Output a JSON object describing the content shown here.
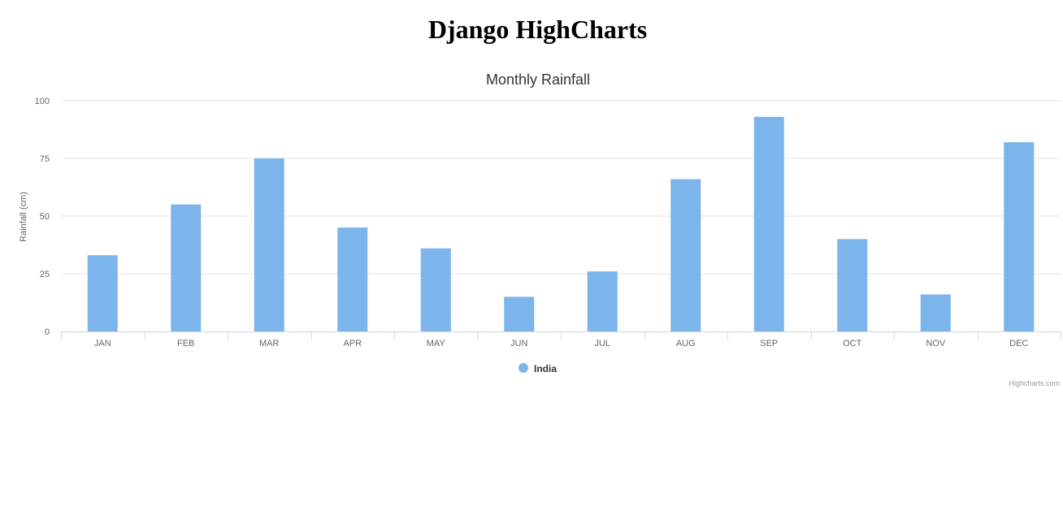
{
  "page": {
    "title": "Django HighCharts"
  },
  "chart_data": {
    "type": "bar",
    "title": "Monthly Rainfall",
    "categories": [
      "JAN",
      "FEB",
      "MAR",
      "APR",
      "MAY",
      "JUN",
      "JUL",
      "AUG",
      "SEP",
      "OCT",
      "NOV",
      "DEC"
    ],
    "series": [
      {
        "name": "India",
        "color": "#7cb5ec",
        "values": [
          33,
          55,
          75,
          45,
          36,
          15,
          26,
          66,
          93,
          40,
          16,
          82
        ]
      }
    ],
    "xlabel": "",
    "ylabel": "Rainfall (cm)",
    "ylim": [
      0,
      100
    ],
    "yticks": [
      0,
      25,
      50,
      75,
      100
    ],
    "grid": true,
    "legend_position": "bottom-center",
    "credits": "Highcharts.com"
  }
}
